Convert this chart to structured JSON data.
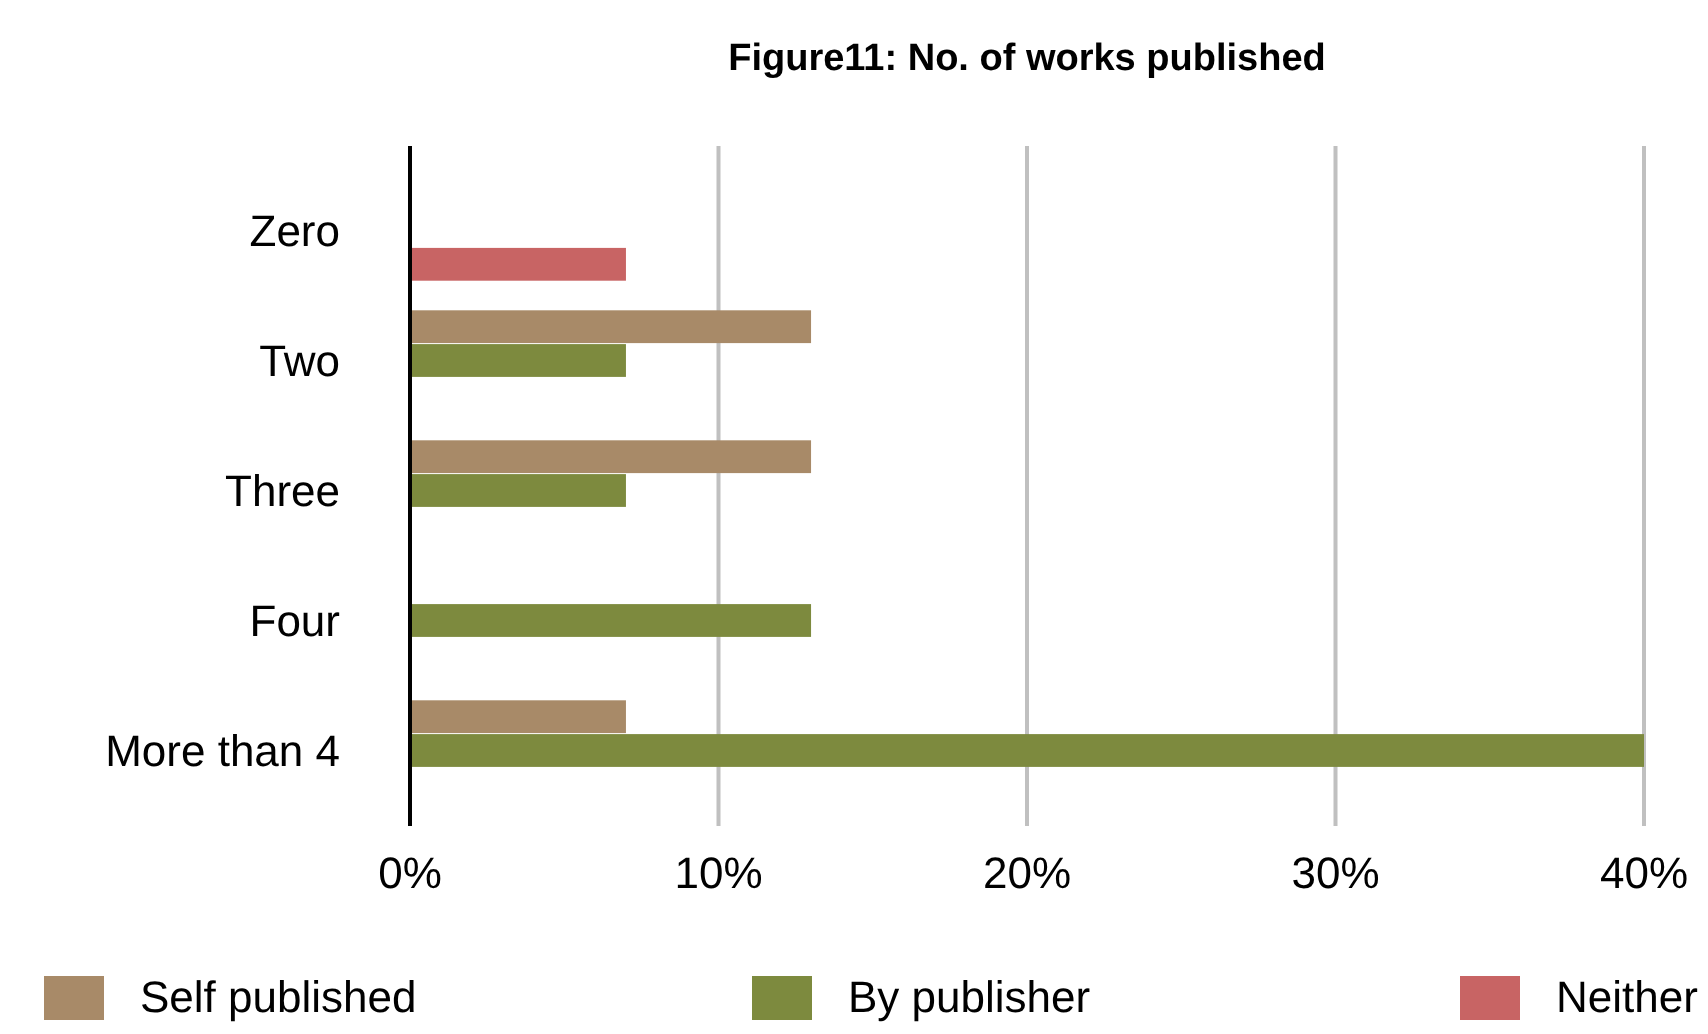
{
  "chart_data": {
    "type": "bar",
    "orientation": "horizontal",
    "title": "Figure11: No. of works published",
    "categories": [
      "Zero",
      "Two",
      "Three",
      "Four",
      "More than 4"
    ],
    "series": [
      {
        "name": "Self published",
        "color": "#a88a68",
        "values": [
          null,
          13,
          13,
          null,
          7
        ]
      },
      {
        "name": "By publisher",
        "color": "#7d8a3e",
        "values": [
          null,
          7,
          7,
          13,
          40
        ]
      },
      {
        "name": "Neither",
        "color": "#c86464",
        "values": [
          7,
          null,
          null,
          null,
          null
        ]
      }
    ],
    "xlim": [
      0,
      40
    ],
    "xticks": [
      {
        "value": 0,
        "label": "0%"
      },
      {
        "value": 10,
        "label": "10%"
      },
      {
        "value": 20,
        "label": "20%"
      },
      {
        "value": 30,
        "label": "30%"
      },
      {
        "value": 40,
        "label": "40%"
      }
    ],
    "grid": "x",
    "legend": "bottom"
  }
}
